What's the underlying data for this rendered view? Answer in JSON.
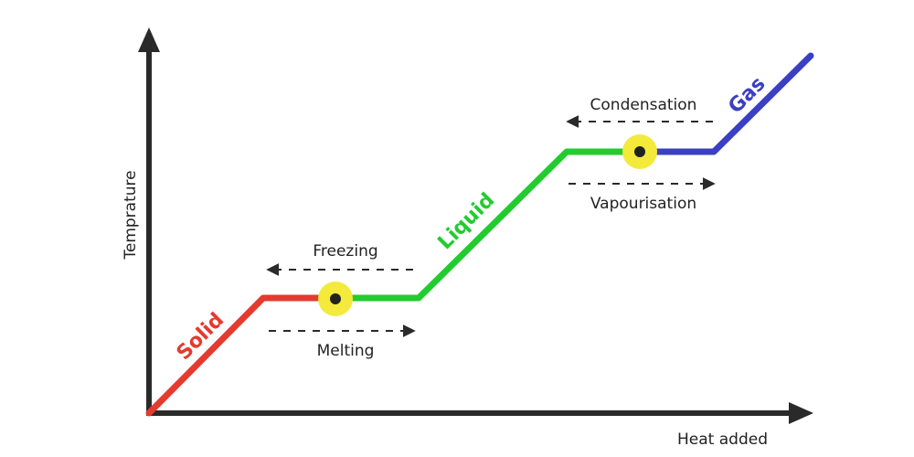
{
  "axes": {
    "x_label": "Heat added",
    "y_label": "Temprature",
    "color": "#2a2a2a"
  },
  "phases": {
    "solid": {
      "label": "Solid",
      "color": "#e53a2e"
    },
    "liquid": {
      "label": "Liquid",
      "color": "#22cc2f"
    },
    "gas": {
      "label": "Gas",
      "color": "#3b3fc4"
    }
  },
  "processes": {
    "freezing": "Freezing",
    "melting": "Melting",
    "condensation": "Condensation",
    "vapourisation": "Vapourisation"
  },
  "marker": {
    "fill": "#f3ea3c",
    "dot": "#222222"
  }
}
